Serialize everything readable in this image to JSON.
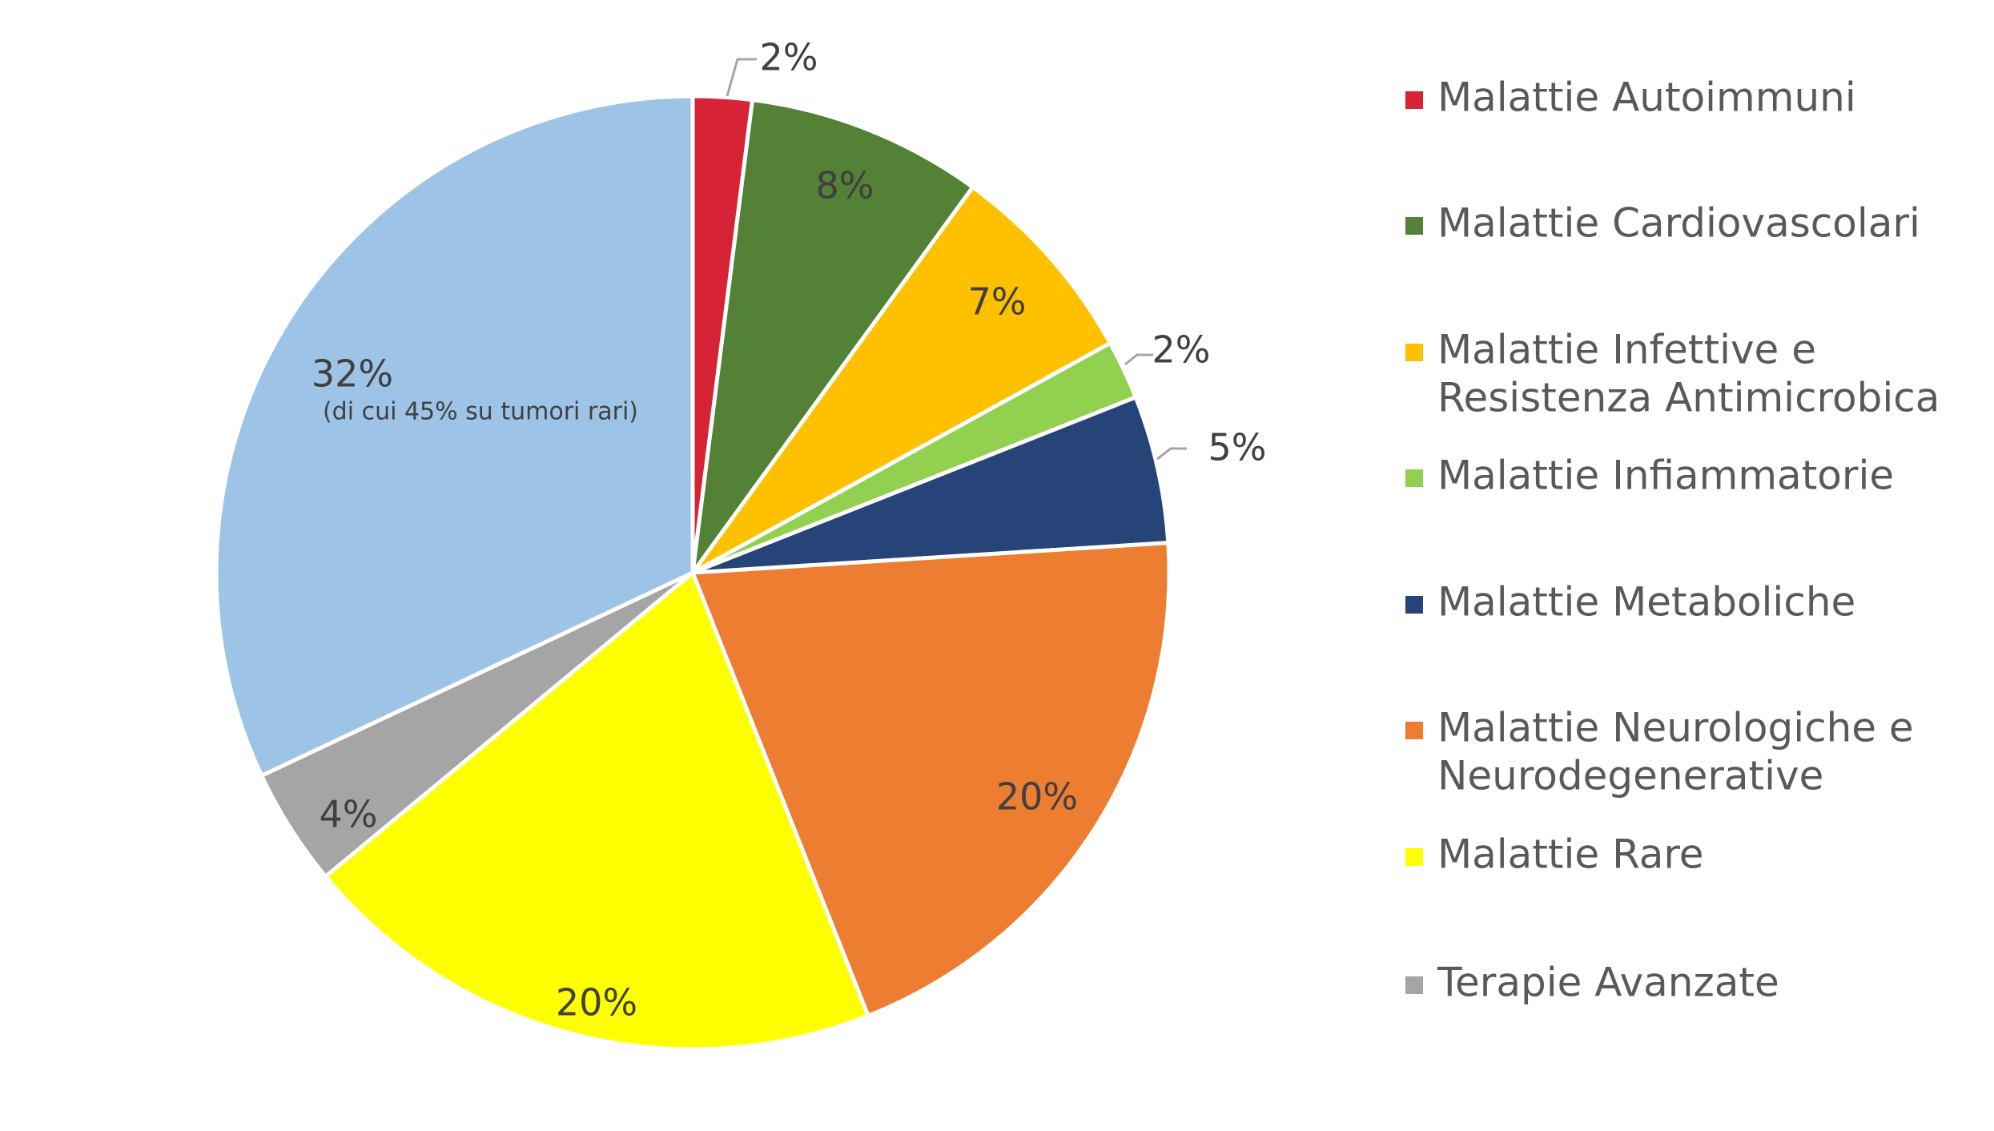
{
  "chart_data": {
    "type": "pie",
    "start_angle_deg": 0,
    "direction": "clockwise",
    "legend_position": "right",
    "slices": [
      {
        "name": "Malattie Autoimmuni",
        "legend_lines": [
          "Malattie Autoimmuni"
        ],
        "value": 2,
        "label": "2%",
        "note": "",
        "color": "#D62335"
      },
      {
        "name": "Malattie Cardiovascolari",
        "legend_lines": [
          "Malattie Cardiovascolari"
        ],
        "value": 8,
        "label": "8%",
        "note": "",
        "color": "#538135"
      },
      {
        "name": "Malattie Infettive e Resistenza Antimicrobica",
        "legend_lines": [
          "Malattie Infettive e",
          "Resistenza Antimicrobica"
        ],
        "value": 7,
        "label": "7%",
        "note": "",
        "color": "#FFC000"
      },
      {
        "name": "Malattie Infiammatorie",
        "legend_lines": [
          "Malattie Infiammatorie"
        ],
        "value": 2,
        "label": "2%",
        "note": "",
        "color": "#92D050"
      },
      {
        "name": "Malattie Metaboliche",
        "legend_lines": [
          "Malattie Metaboliche"
        ],
        "value": 5,
        "label": "5%",
        "note": "",
        "color": "#264478"
      },
      {
        "name": "Malattie Neurologiche e Neurodegenerative",
        "legend_lines": [
          "Malattie Neurologiche e",
          "Neurodegenerative"
        ],
        "value": 20,
        "label": "20%",
        "note": "",
        "color": "#ED7D31"
      },
      {
        "name": "Malattie Rare",
        "legend_lines": [
          "Malattie Rare"
        ],
        "value": 20,
        "label": "20%",
        "note": "",
        "color": "#FFFF00"
      },
      {
        "name": "Terapie Avanzate",
        "legend_lines": [
          "Terapie Avanzate"
        ],
        "value": 4,
        "label": "4%",
        "note": "",
        "color": "#A5A5A5"
      },
      {
        "name": "",
        "legend_lines": [],
        "value": 32,
        "label": "32%",
        "note": "(di cui 45% su tumori rari)",
        "color": "#9DC3E6"
      }
    ]
  }
}
